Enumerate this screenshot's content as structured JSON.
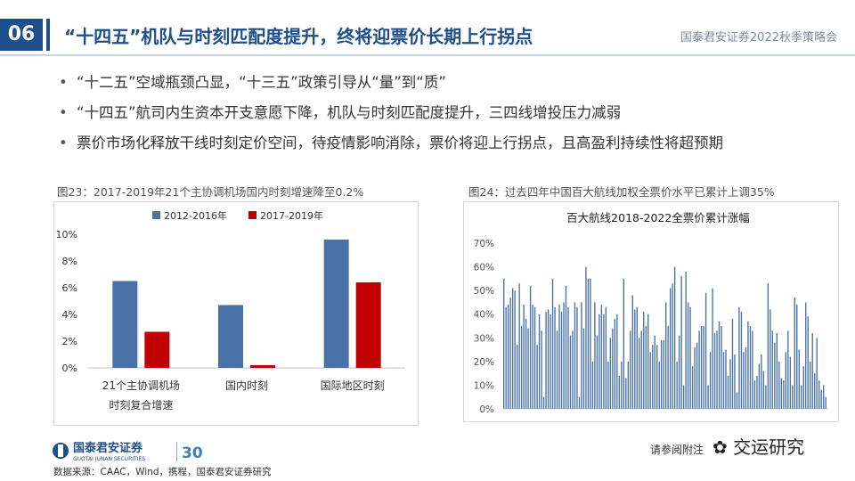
{
  "header": {
    "slide_number": "06",
    "title": "“十四五”机队与时刻匹配度提升，终将迎票价长期上行拐点",
    "conference": "国泰君安证券2022秋季策略会"
  },
  "bullets": [
    "“十二五”空域瓶颈凸显，“十三五”政策引导从“量”到“质”",
    "“十四五”航司内生资本开支意愿下降，机队与时刻匹配度提升，三四线增投压力减弱",
    "票价市场化释放干线时刻定价空间，待疫情影响消除，票价将迎上行拐点，且高盈利持续性将超预期"
  ],
  "bullet_marker": "•",
  "captions": {
    "left": "图23：2017-2019年21个主协调机场国内时刻增速降至0.2%",
    "right": "图24：过去四年中国百大航线加权全票价水平已累计上调35%"
  },
  "footer": {
    "logo_cn": "国泰君安证券",
    "logo_en": "GUOTAI JUNAN SECURITIES",
    "logo_badge": "30",
    "source": "数据来源：CAAC，Wind，携程，国泰君安证券研究",
    "disclaimer": "请参阅附注",
    "wechat": "交运研究"
  },
  "colors": {
    "brand_blue": "#1f4e8c",
    "series_blue": "#4a72a8",
    "series_red": "#c00000"
  },
  "chart_data": [
    {
      "type": "bar",
      "title": "",
      "categories": [
        "21个主协调机场\n时刻复合增速",
        "国内时刻",
        "国际地区时刻"
      ],
      "category_lines": [
        [
          "21个主协调机场",
          "时刻复合增速"
        ],
        [
          "国内时刻"
        ],
        [
          "国际地区时刻"
        ]
      ],
      "series": [
        {
          "name": "2012-2016年",
          "values": [
            6.5,
            4.7,
            9.6
          ],
          "color": "#4a72a8"
        },
        {
          "name": "2017-2019年",
          "values": [
            2.7,
            0.2,
            6.4
          ],
          "color": "#c00000"
        }
      ],
      "yticks": [
        "0%",
        "2%",
        "4%",
        "6%",
        "8%",
        "10%"
      ],
      "ylim": [
        0,
        10
      ],
      "unit": "%",
      "legend": "top",
      "grid": false
    },
    {
      "type": "bar",
      "title": "百大航线2018-2022全票价累计涨幅",
      "values": [
        55,
        43,
        44,
        47,
        51,
        50,
        27,
        53,
        35,
        44,
        38,
        34,
        52,
        44,
        43,
        27,
        40,
        33,
        5,
        41,
        42,
        40,
        55,
        43,
        33,
        44,
        41,
        45,
        52,
        43,
        31,
        33,
        45,
        43,
        5,
        45,
        34,
        60,
        55,
        55,
        20,
        45,
        31,
        40,
        44,
        40,
        43,
        20,
        30,
        34,
        38,
        40,
        14,
        20,
        55,
        13,
        20,
        33,
        48,
        42,
        43,
        30,
        33,
        41,
        35,
        40,
        24,
        27,
        31,
        27,
        20,
        29,
        29,
        45,
        35,
        51,
        53,
        60,
        20,
        31,
        56,
        10,
        58,
        45,
        43,
        18,
        26,
        28,
        33,
        35,
        35,
        49,
        10,
        24,
        51,
        32,
        33,
        37,
        35,
        24,
        25,
        14,
        21,
        38,
        23,
        7,
        43,
        41,
        24,
        26,
        37,
        35,
        33,
        12,
        14,
        19,
        23,
        16,
        10,
        53,
        42,
        33,
        28,
        32,
        20,
        13,
        12,
        24,
        33,
        22,
        10,
        47,
        44,
        25,
        10,
        18,
        45,
        39,
        20,
        32,
        15,
        30,
        12,
        8,
        10,
        5
      ],
      "yticks": [
        "0%",
        "10%",
        "20%",
        "30%",
        "40%",
        "50%",
        "60%",
        "70%"
      ],
      "ylim": [
        0,
        70
      ],
      "unit": "%",
      "grid": false
    }
  ]
}
